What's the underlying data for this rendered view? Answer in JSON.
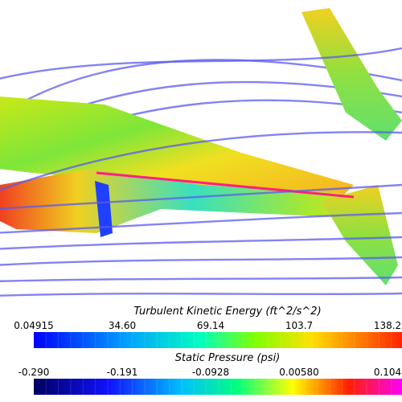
{
  "colorbars": [
    {
      "title": "Turbulent Kinetic Energy (ft^2/s^2)",
      "ticks": [
        "0.04915",
        "34.60",
        "69.14",
        "103.7",
        "138.2"
      ]
    },
    {
      "title": "Static Pressure (psi)",
      "ticks": [
        "-0.290",
        "-0.191",
        "-0.0928",
        "0.00580",
        "0.104"
      ]
    }
  ]
}
